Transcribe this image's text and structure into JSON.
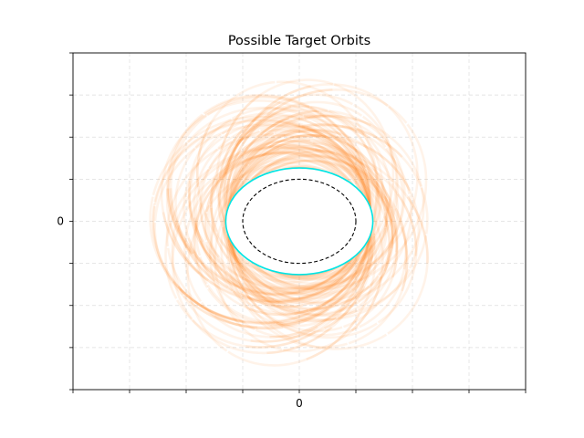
{
  "chart_data": {
    "type": "line",
    "title": "Possible Target Orbits",
    "xlabel": "",
    "ylabel": "",
    "xlim": [
      -4,
      4
    ],
    "ylim": [
      -3,
      3
    ],
    "x_ticks": [
      -4,
      -3,
      -2,
      -1,
      0,
      1,
      2,
      3,
      4
    ],
    "x_tick_labels": [
      "",
      "",
      "",
      "",
      "0",
      "",
      "",
      "",
      ""
    ],
    "y_ticks": [
      -3,
      -2.25,
      -1.5,
      -0.75,
      0,
      0.75,
      1.5,
      2.25,
      3
    ],
    "y_tick_labels": [
      "",
      "",
      "",
      "",
      "0",
      "",
      "",
      "",
      ""
    ],
    "grid": true,
    "grid_style": "dashed",
    "colors": {
      "orbit_fan": "#ff7f0e",
      "target_orbit": "#00e5e5",
      "reference_orbit": "#000000"
    },
    "series": [
      {
        "style": "orbit-fan",
        "count": 80,
        "inner_semi_axes": [
          1.27,
          0.95
        ],
        "apo_distance_range": [
          1.3,
          2.7
        ],
        "rotation_range_deg": [
          0,
          360
        ],
        "segments_deg": [
          [
            -140,
            170
          ],
          [
            170,
            260
          ]
        ]
      },
      {
        "style": "solid",
        "center": [
          0,
          0
        ],
        "semi_axes": [
          1.3,
          0.95
        ]
      },
      {
        "style": "dashed",
        "center": [
          0,
          0
        ],
        "semi_axes": [
          1.0,
          0.75
        ]
      }
    ]
  }
}
